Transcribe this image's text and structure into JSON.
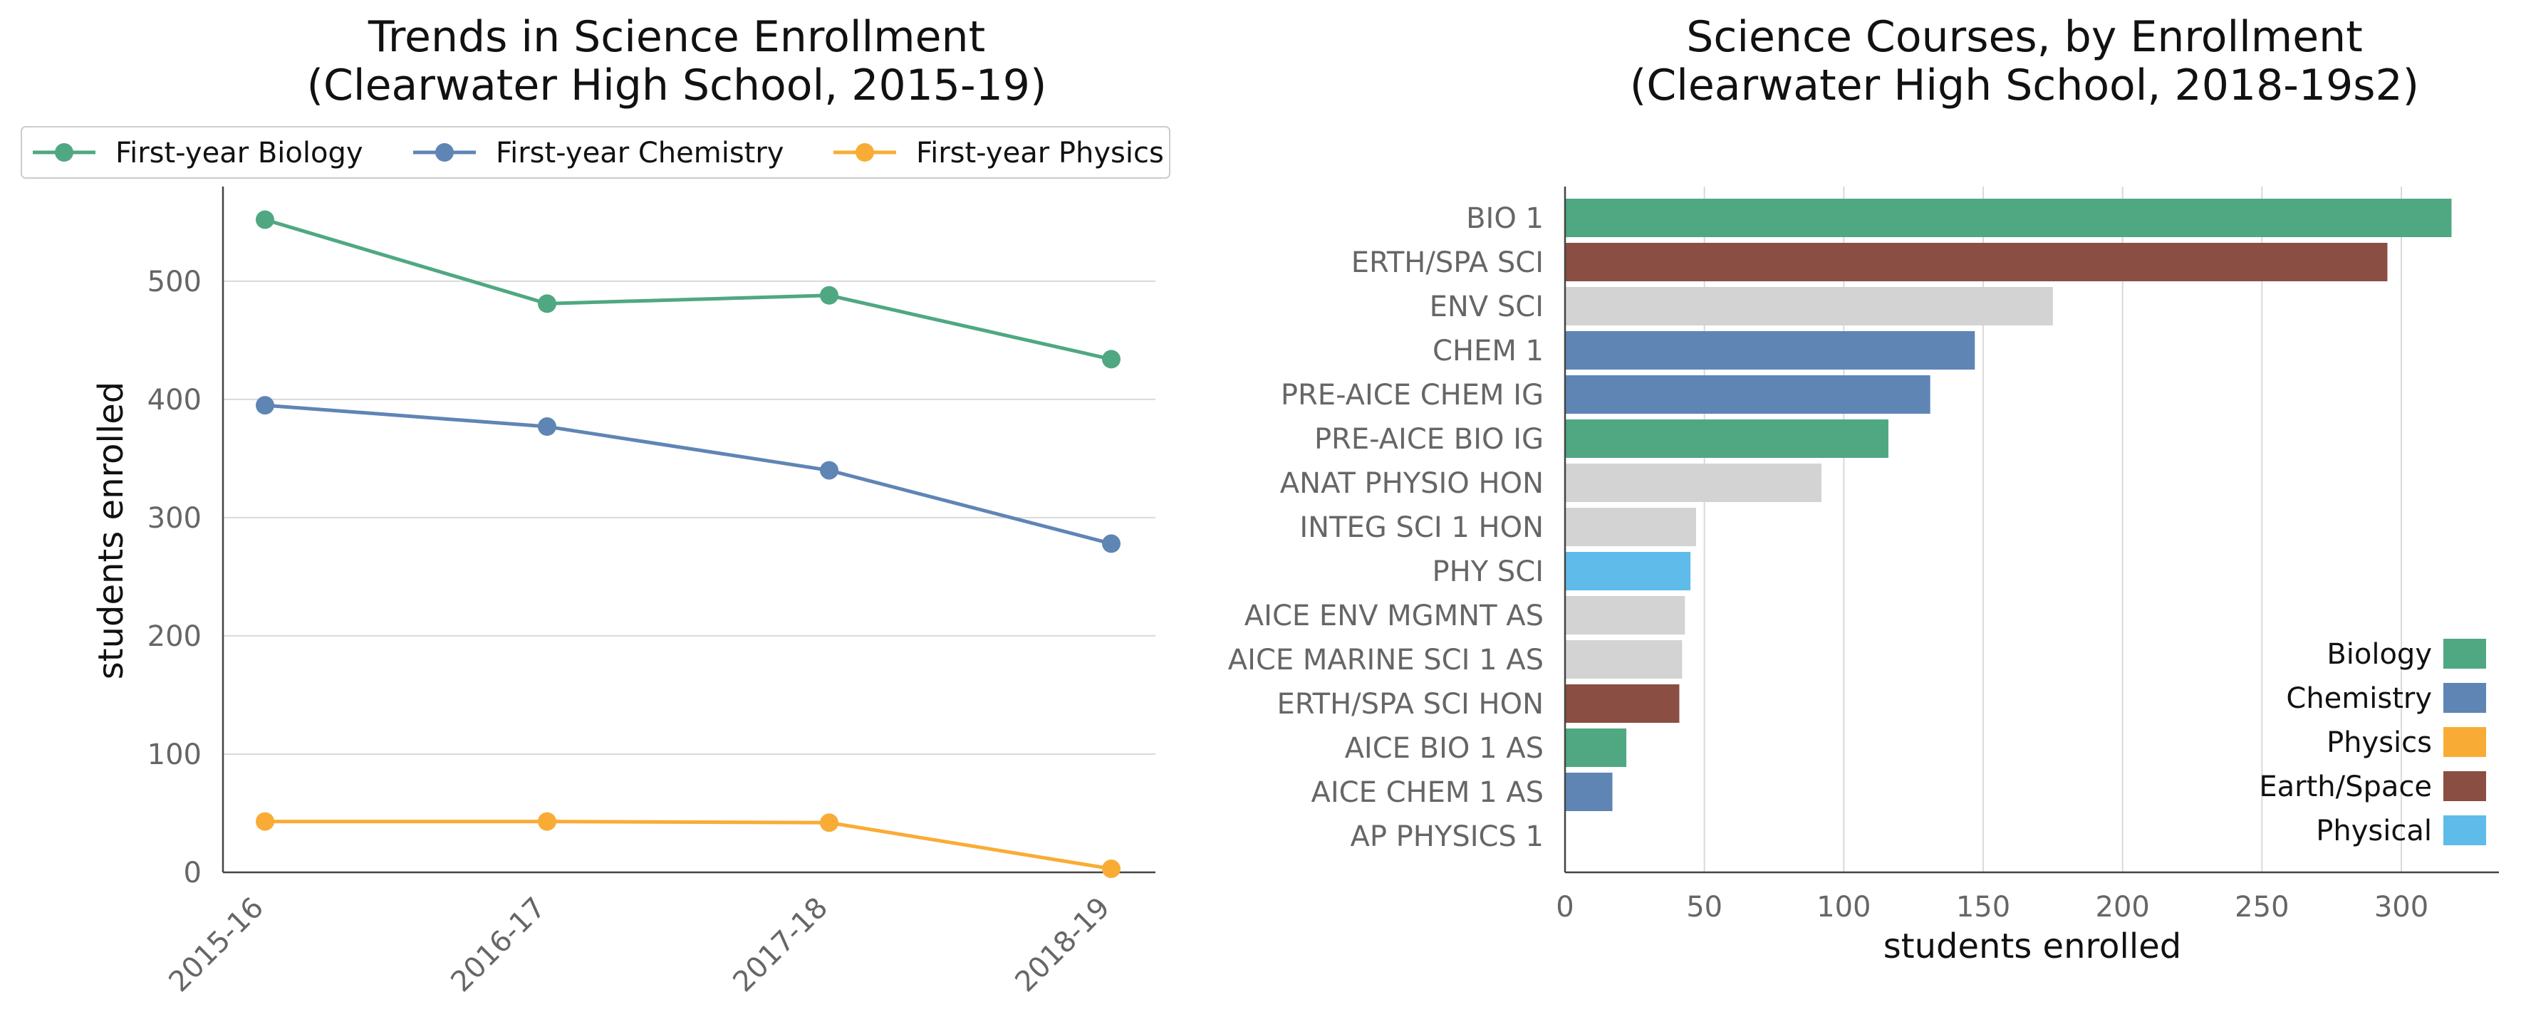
{
  "chart_data": [
    {
      "type": "line",
      "title": "Trends in Science Enrollment",
      "subtitle": "(Clearwater High School, 2015-19)",
      "xlabel": "",
      "ylabel": "students enrolled",
      "categories": [
        "2015-16",
        "2016-17",
        "2017-18",
        "2018-19"
      ],
      "ylim": [
        0,
        580
      ],
      "yticks": [
        "0",
        "100",
        "200",
        "300",
        "400",
        "500"
      ],
      "grid": "horizontal",
      "legend_position": "top",
      "series": [
        {
          "name": "First-year Biology",
          "color": "#4FA882",
          "values": [
            552,
            481,
            488,
            434
          ]
        },
        {
          "name": "First-year Chemistry",
          "color": "#5F85B5",
          "values": [
            395,
            377,
            340,
            278
          ]
        },
        {
          "name": "First-year Physics",
          "color": "#F9AC35",
          "values": [
            43,
            43,
            42,
            3
          ]
        }
      ]
    },
    {
      "type": "bar",
      "orientation": "horizontal",
      "title": "Science Courses, by Enrollment",
      "subtitle": "(Clearwater High School, 2018-19s2)",
      "xlabel": "students enrolled",
      "ylabel": "",
      "xlim": [
        0,
        335
      ],
      "xticks": [
        "0",
        "50",
        "100",
        "150",
        "200",
        "250",
        "300"
      ],
      "grid": "vertical",
      "legend_position": "bottom-right",
      "categories": [
        "BIO 1",
        "ERTH/SPA SCI",
        "ENV SCI",
        "CHEM 1",
        "PRE-AICE CHEM IG",
        "PRE-AICE BIO IG",
        "ANAT PHYSIO HON",
        "INTEG SCI 1 HON",
        "PHY SCI",
        "AICE ENV MGMNT AS",
        "AICE MARINE SCI 1 AS",
        "ERTH/SPA SCI HON",
        "AICE BIO 1 AS",
        "AICE CHEM 1 AS",
        "AP PHYSICS 1"
      ],
      "values": [
        318,
        295,
        175,
        147,
        131,
        116,
        92,
        47,
        45,
        43,
        42,
        41,
        22,
        17,
        0
      ],
      "bar_colors": [
        "#4FA882",
        "#8B4E42",
        "#D3D3D3",
        "#5F85B5",
        "#5F85B5",
        "#4FA882",
        "#D3D3D3",
        "#D3D3D3",
        "#5FBCEA",
        "#D3D3D3",
        "#D3D3D3",
        "#8B4E42",
        "#4FA882",
        "#5F85B5",
        "#F9AC35"
      ],
      "legend": [
        {
          "name": "Biology",
          "color": "#4FA882"
        },
        {
          "name": "Chemistry",
          "color": "#5F85B5"
        },
        {
          "name": "Physics",
          "color": "#F9AC35"
        },
        {
          "name": "Earth/Space",
          "color": "#8B4E42"
        },
        {
          "name": "Physical",
          "color": "#5FBCEA"
        }
      ]
    }
  ]
}
